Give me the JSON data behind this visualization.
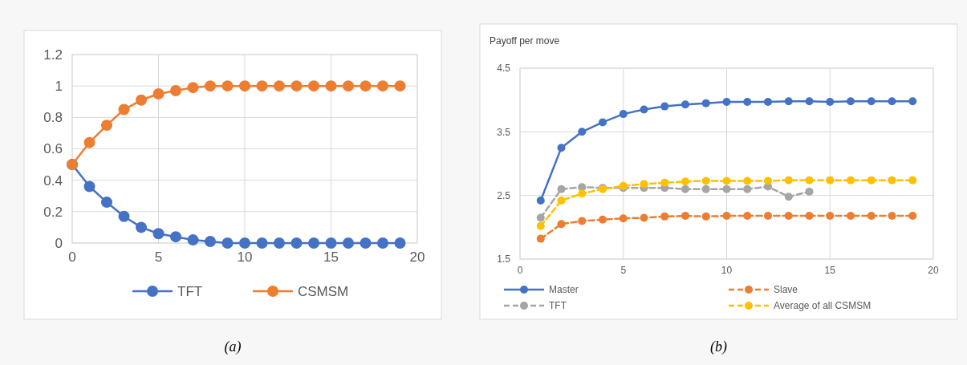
{
  "chart_data": [
    {
      "type": "line",
      "x": [
        0,
        1,
        2,
        3,
        4,
        5,
        6,
        7,
        8,
        9,
        10,
        11,
        12,
        13,
        14,
        15,
        16,
        17,
        18,
        19
      ],
      "xlim": [
        0,
        20
      ],
      "xticks": [
        0,
        5,
        10,
        15,
        20
      ],
      "ylim": [
        0,
        1.2
      ],
      "yticks": [
        0,
        0.2,
        0.4,
        0.6,
        0.8,
        1,
        1.2
      ],
      "grid": true,
      "legend": "bottom",
      "marker": "circle",
      "line_style": "solid",
      "annotations": [
        "(a)"
      ],
      "series": [
        {
          "name": "TFT",
          "color": "#4472c4",
          "values": [
            0.5,
            0.36,
            0.26,
            0.17,
            0.1,
            0.06,
            0.04,
            0.02,
            0.01,
            0,
            0,
            0,
            0,
            0,
            0,
            0,
            0,
            0,
            0,
            0
          ]
        },
        {
          "name": "CSMSM",
          "color": "#ed7d31",
          "values": [
            0.5,
            0.64,
            0.75,
            0.85,
            0.91,
            0.95,
            0.97,
            0.99,
            1,
            1,
            1,
            1,
            1,
            1,
            1,
            1,
            1,
            1,
            1,
            1
          ]
        }
      ]
    },
    {
      "type": "line",
      "ylabel": "Payoff per move",
      "x": [
        1,
        2,
        3,
        4,
        5,
        6,
        7,
        8,
        9,
        10,
        11,
        12,
        13,
        14,
        15,
        16,
        17,
        18,
        19
      ],
      "xlim": [
        0,
        20
      ],
      "xticks": [
        0,
        5,
        10,
        15,
        20
      ],
      "ylim": [
        1.5,
        4.5
      ],
      "yticks": [
        1.5,
        2.5,
        3.5,
        4.5
      ],
      "grid": true,
      "legend": "bottom",
      "marker": "circle",
      "annotations": [
        "(b)"
      ],
      "series": [
        {
          "name": "Master",
          "color": "#4472c4",
          "line_style": "solid",
          "values": [
            2.42,
            3.25,
            3.5,
            3.65,
            3.78,
            3.85,
            3.9,
            3.93,
            3.95,
            3.97,
            3.97,
            3.97,
            3.98,
            3.98,
            3.97,
            3.98,
            3.98,
            3.98,
            3.98
          ]
        },
        {
          "name": "Slave",
          "color": "#ed7d31",
          "line_style": "dashed",
          "values": [
            1.82,
            2.05,
            2.1,
            2.12,
            2.14,
            2.15,
            2.17,
            2.18,
            2.17,
            2.18,
            2.18,
            2.18,
            2.18,
            2.18,
            2.18,
            2.18,
            2.18,
            2.18,
            2.18
          ]
        },
        {
          "name": "TFT",
          "color": "#a5a5a5",
          "line_style": "dashed",
          "values": [
            2.15,
            2.6,
            2.63,
            2.62,
            2.62,
            2.62,
            2.62,
            2.6,
            2.6,
            2.6,
            2.6,
            2.64,
            2.48,
            2.56,
            null,
            null,
            null,
            null,
            null
          ]
        },
        {
          "name": "Average of all CSMSM",
          "color": "#ffc000",
          "line_style": "dashed",
          "values": [
            2.02,
            2.42,
            2.53,
            2.6,
            2.65,
            2.68,
            2.7,
            2.72,
            2.73,
            2.73,
            2.73,
            2.73,
            2.74,
            2.74,
            2.74,
            2.74,
            2.74,
            2.74,
            2.74
          ]
        }
      ]
    }
  ]
}
